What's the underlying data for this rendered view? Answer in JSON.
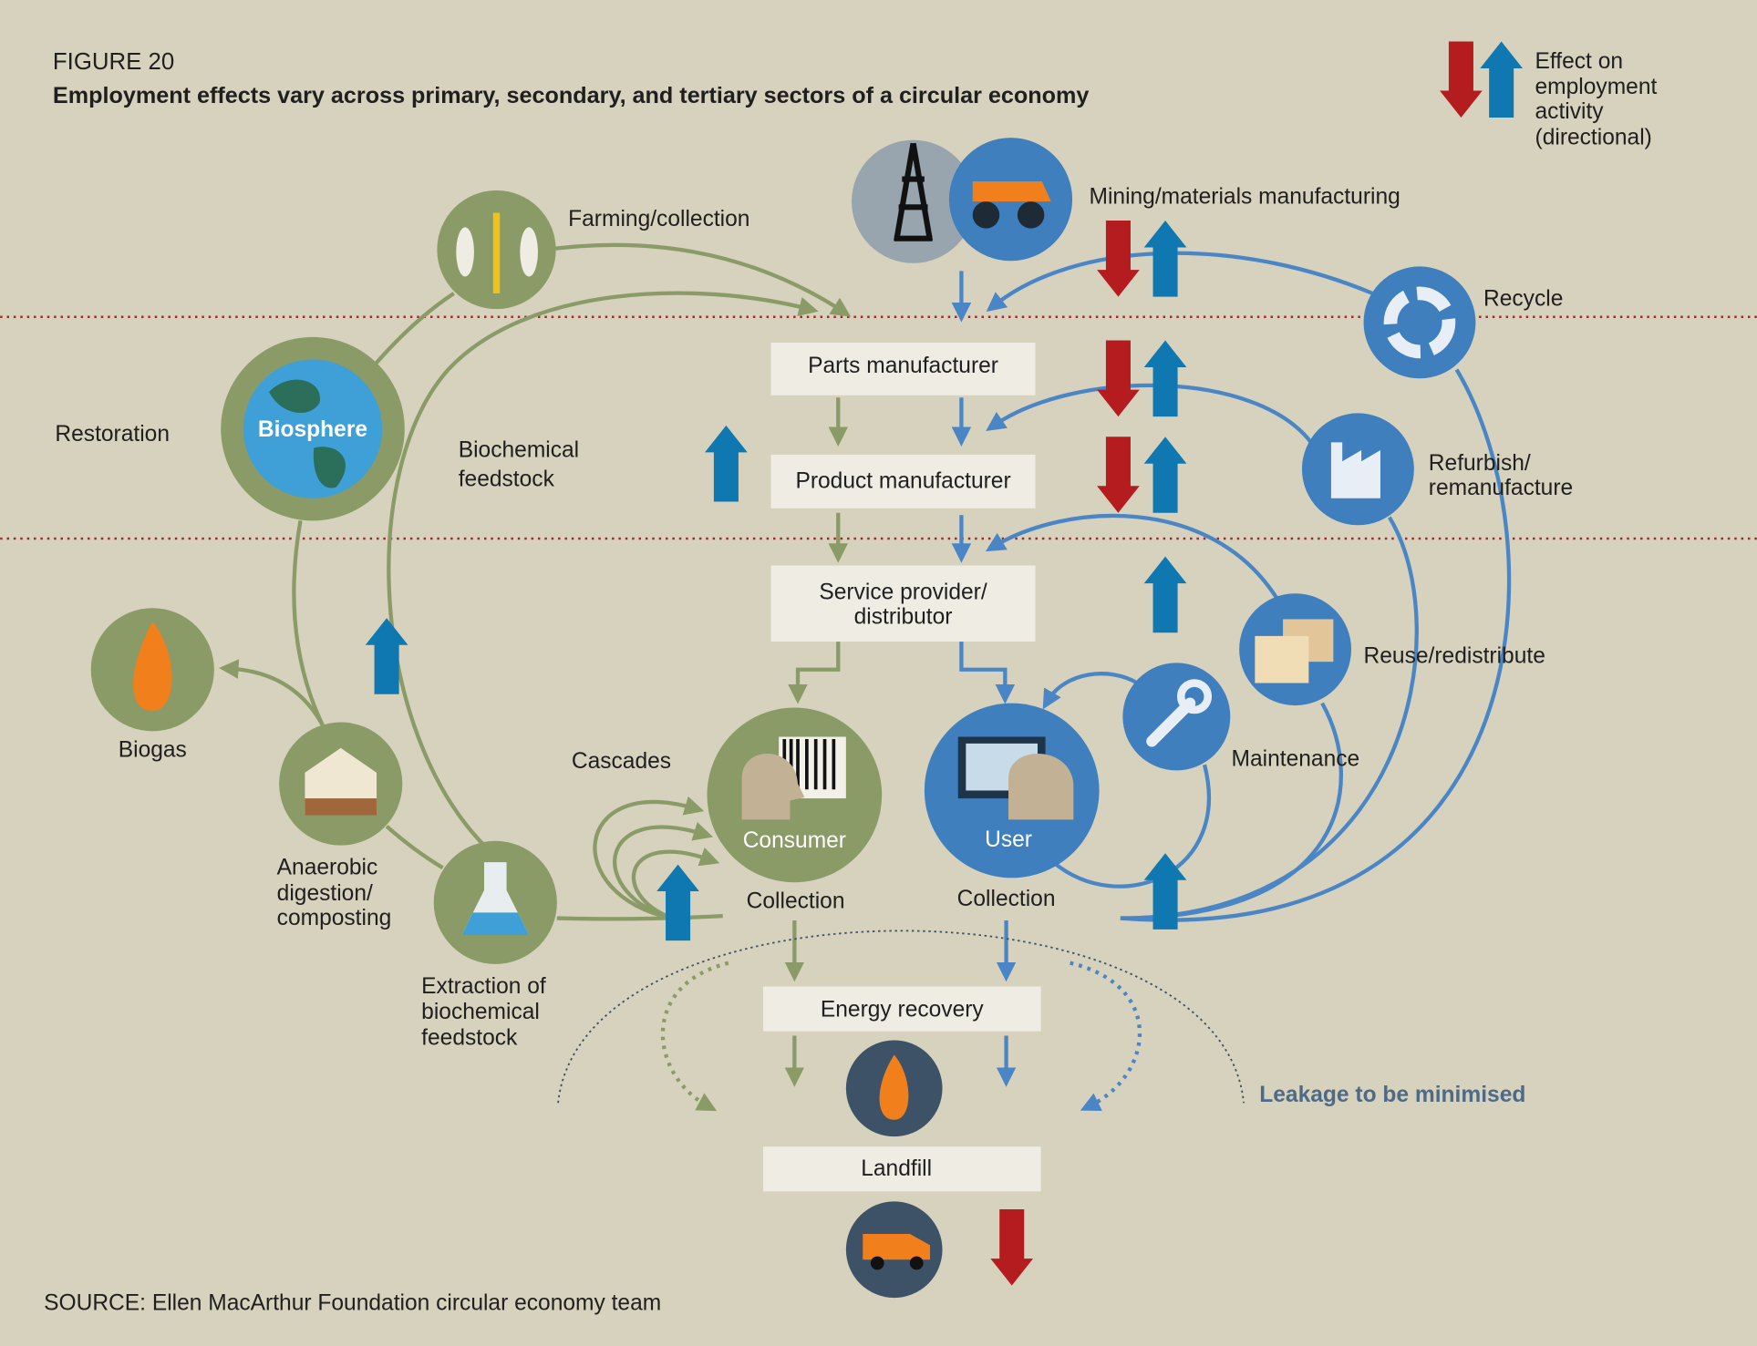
{
  "header": {
    "figure": "FIGURE 20",
    "title": "Employment effects vary across primary, secondary, and tertiary sectors of a circular economy"
  },
  "legend": {
    "lines": [
      "Effect on",
      "employment",
      "activity",
      "(directional)"
    ]
  },
  "nodes": {
    "mining": "Mining/materials manufacturing",
    "farming": "Farming/collection",
    "recycle": "Recycle",
    "restoration": "Restoration",
    "biosphere": "Biosphere",
    "biochemical_feedstock": [
      "Biochemical",
      "feedstock"
    ],
    "refurbish": [
      "Refurbish/",
      "remanufacture"
    ],
    "reuse": "Reuse/redistribute",
    "biogas": "Biogas",
    "cascades": "Cascades",
    "maintenance": "Maintenance",
    "consumer": "Consumer",
    "user": "User",
    "collection_left": "Collection",
    "collection_right": "Collection",
    "anaerobic": [
      "Anaerobic",
      "digestion/",
      "composting"
    ],
    "extraction": [
      "Extraction of",
      "biochemical",
      "feedstock"
    ],
    "leakage": "Leakage to be minimised"
  },
  "boxes": {
    "parts": "Parts manufacturer",
    "product": "Product manufacturer",
    "service": [
      "Service provider/",
      "distributor"
    ],
    "energy": "Energy recovery",
    "landfill": "Landfill"
  },
  "source": "SOURCE: Ellen MacArthur Foundation circular economy team"
}
